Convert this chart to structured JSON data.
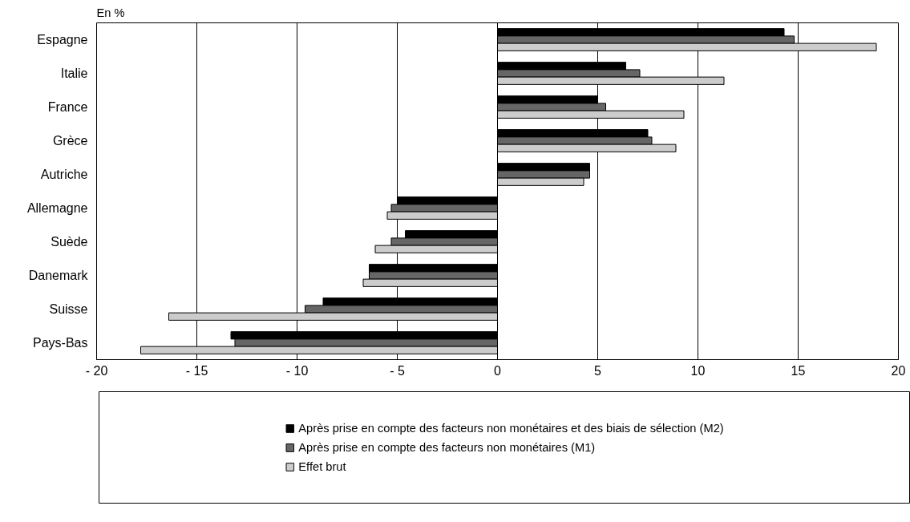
{
  "chart_data": {
    "type": "bar",
    "orientation": "horizontal",
    "ylabel": "En %",
    "categories": [
      "Espagne",
      "Italie",
      "France",
      "Grèce",
      "Autriche",
      "Allemagne",
      "Suède",
      "Danemark",
      "Suisse",
      "Pays-Bas"
    ],
    "series": [
      {
        "name": "Après prise en compte des facteurs non monétaires et des biais de sélection (M2)",
        "color": "#000000",
        "values": [
          14.3,
          6.4,
          5.0,
          7.5,
          4.6,
          -5.0,
          -4.6,
          -6.4,
          -8.7,
          -13.3
        ]
      },
      {
        "name": "Après prise en compte des facteurs non monétaires (M1)",
        "color": "#666666",
        "values": [
          14.8,
          7.1,
          5.4,
          7.7,
          4.6,
          -5.3,
          -5.3,
          -6.4,
          -9.6,
          -13.1
        ]
      },
      {
        "name": "Effet brut",
        "color": "#cccccc",
        "values": [
          18.9,
          11.3,
          9.3,
          8.9,
          4.3,
          -5.5,
          -6.1,
          -6.7,
          -16.4,
          -17.8
        ]
      }
    ],
    "xlim": [
      -20,
      20
    ],
    "xticks": [
      {
        "value": -20,
        "label": "- 20"
      },
      {
        "value": -15,
        "label": "- 15"
      },
      {
        "value": -10,
        "label": "- 10"
      },
      {
        "value": -5,
        "label": "- 5"
      },
      0,
      5,
      10,
      15,
      20
    ],
    "grid": "x",
    "legend": "bottom"
  }
}
